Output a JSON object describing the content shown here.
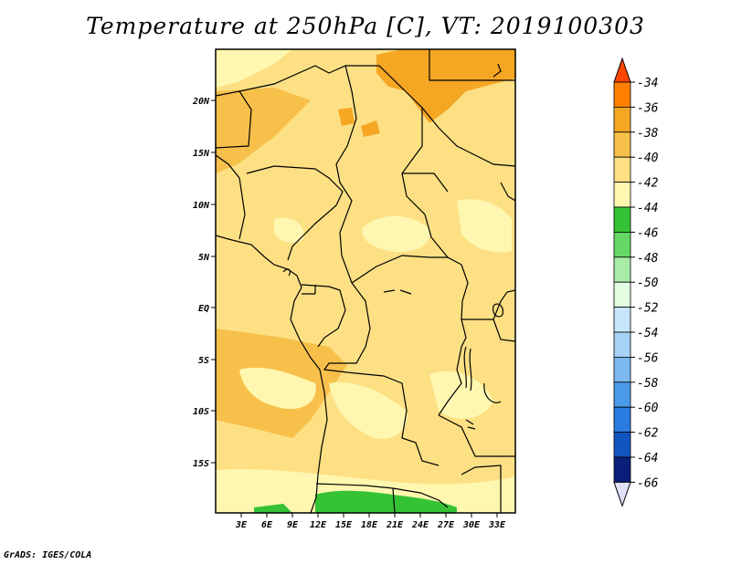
{
  "title": "Temperature at 250hPa [C], VT: 2019100303",
  "footer": "GrADS: IGES/COLA",
  "map": {
    "lon_labels": [
      "3E",
      "6E",
      "9E",
      "12E",
      "15E",
      "18E",
      "21E",
      "24E",
      "27E",
      "30E",
      "33E"
    ],
    "lat_labels": [
      "20N",
      "15N",
      "10N",
      "5N",
      "EQ",
      "5S",
      "10S",
      "15S"
    ]
  },
  "colorbar": {
    "levels": [
      "-34",
      "-36",
      "-38",
      "-40",
      "-42",
      "-44",
      "-46",
      "-48",
      "-50",
      "-52",
      "-54",
      "-56",
      "-58",
      "-60",
      "-62",
      "-64",
      "-66"
    ],
    "colors": [
      "#ff4500",
      "#ff7f00",
      "#f5a623",
      "#f7c04a",
      "#fde084",
      "#fff7b0",
      "#35c335",
      "#66d866",
      "#a8eca8",
      "#e2fde2",
      "#c8e6fa",
      "#a5d2f5",
      "#7bb9f0",
      "#4a9bea",
      "#2a7ce0",
      "#1055c0",
      "#0a1f7a",
      "#e0e0f8"
    ]
  }
}
